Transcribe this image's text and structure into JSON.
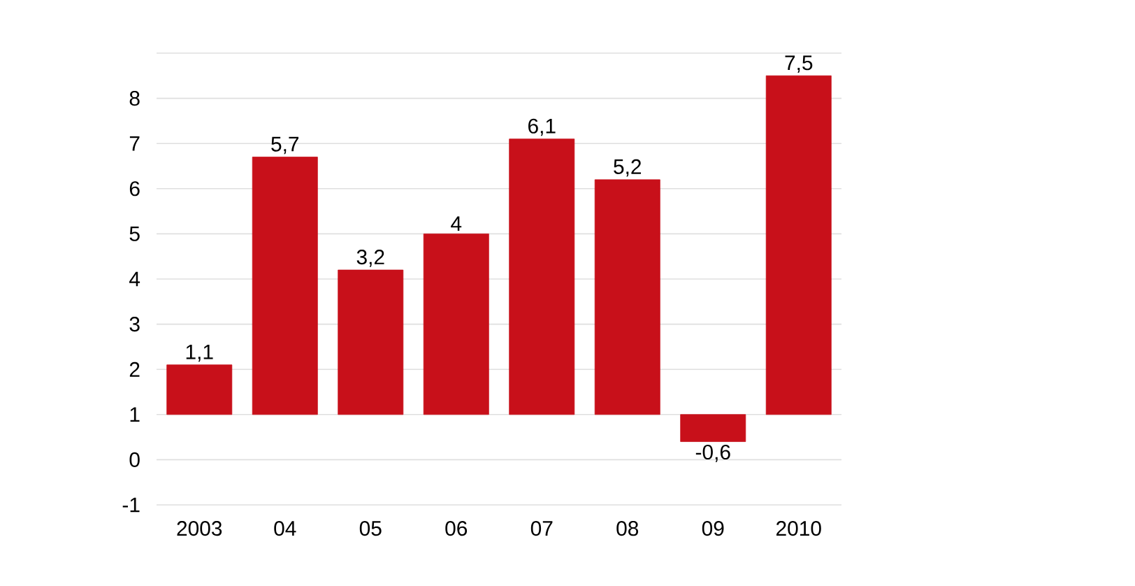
{
  "chart_data": {
    "type": "bar",
    "categories": [
      "2003",
      "04",
      "05",
      "06",
      "07",
      "08",
      "09",
      "2010"
    ],
    "values": [
      1.1,
      5.7,
      3.2,
      4,
      6.1,
      5.2,
      -0.6,
      7.5
    ],
    "base": [
      1,
      1,
      1,
      1,
      1,
      1,
      1,
      1
    ],
    "value_labels": [
      "1,1",
      "5,7",
      "3,2",
      "4",
      "6,1",
      "5,2",
      "-0,6",
      "7,5"
    ],
    "color": "#c8101a",
    "ylim": [
      -1,
      9
    ],
    "yticks": [
      -1,
      0,
      1,
      2,
      3,
      4,
      5,
      6,
      7,
      8,
      {
        "value": 9,
        "label": null
      }
    ],
    "grid": "y"
  }
}
